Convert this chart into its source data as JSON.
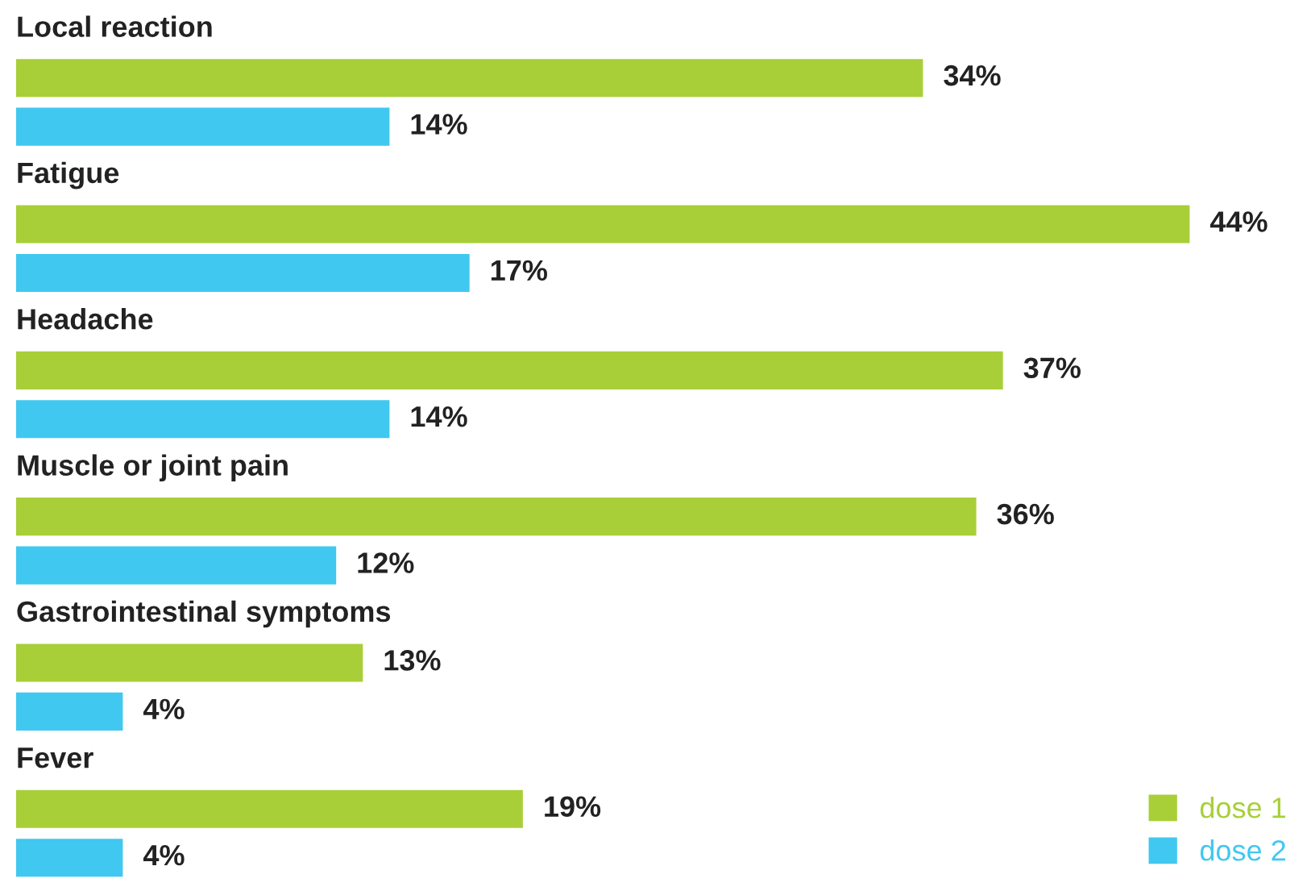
{
  "chart_data": {
    "type": "bar",
    "orientation": "horizontal",
    "categories": [
      "Local reaction",
      "Fatigue",
      "Headache",
      "Muscle or joint pain",
      "Gastrointestinal symptoms",
      "Fever"
    ],
    "series": [
      {
        "name": "dose 1",
        "color": "#a8cf38",
        "values": [
          34,
          44,
          37,
          36,
          13,
          19
        ],
        "value_labels": [
          "34%",
          "44%",
          "37%",
          "36%",
          "13%",
          "19%"
        ]
      },
      {
        "name": "dose 2",
        "color": "#40c8f0",
        "values": [
          14,
          17,
          14,
          12,
          4,
          4
        ],
        "value_labels": [
          "14%",
          "17%",
          "14%",
          "12%",
          "4%",
          "4%"
        ]
      }
    ],
    "legend": "bottom right"
  }
}
